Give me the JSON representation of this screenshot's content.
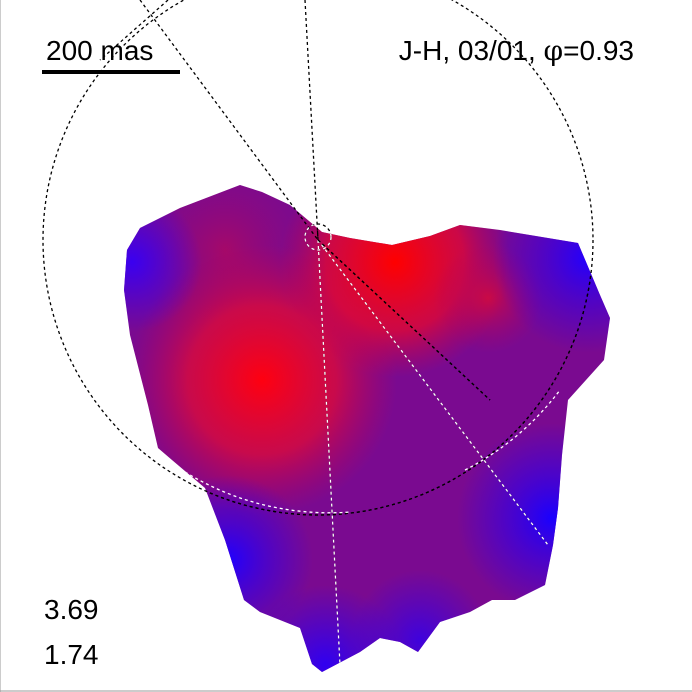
{
  "figure": {
    "scale_bar_label": "200 mas",
    "band": "J-H",
    "date": "03/01",
    "phase_symbol": "φ",
    "phase_value": "=0.93",
    "colorbar_max": "3.69",
    "colorbar_min": "1.74"
  },
  "colors": {
    "high": "#ff0000",
    "mid": "#8a1080",
    "low": "#2000ff",
    "contour": "#000000",
    "contour_on_map": "#ffffff"
  }
}
